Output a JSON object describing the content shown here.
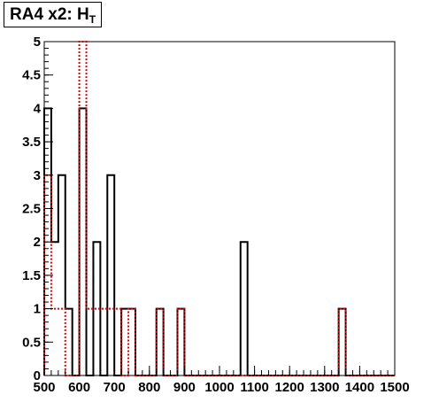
{
  "title": {
    "main": "RA4 x2: H",
    "subscript": "T"
  },
  "chart_data": {
    "type": "histogram",
    "title": "RA4 x2: HT",
    "xlabel": "",
    "ylabel": "",
    "xlim": [
      500,
      1500
    ],
    "ylim": [
      0,
      5
    ],
    "bin_width": 20,
    "x_ticks": [
      500,
      600,
      700,
      800,
      900,
      1000,
      1100,
      1200,
      1300,
      1400,
      1500
    ],
    "x_tick_labels": [
      "500",
      "600",
      "700",
      "800",
      "900",
      "1000",
      "1100",
      "1200",
      "1300",
      "1400",
      "1500"
    ],
    "y_ticks": [
      0,
      0.5,
      1,
      1.5,
      2,
      2.5,
      3,
      3.5,
      4,
      4.5,
      5
    ],
    "y_tick_labels": [
      "0",
      "0.5",
      "1",
      "1.5",
      "2",
      "2.5",
      "3",
      "3.5",
      "4",
      "4.5",
      "5"
    ],
    "series": [
      {
        "style": "solid",
        "color": "#000000",
        "bins": [
          {
            "x": 500,
            "y": 4
          },
          {
            "x": 520,
            "y": 2
          },
          {
            "x": 540,
            "y": 3
          },
          {
            "x": 560,
            "y": 1
          },
          {
            "x": 580,
            "y": 0
          },
          {
            "x": 600,
            "y": 4
          },
          {
            "x": 620,
            "y": 0
          },
          {
            "x": 640,
            "y": 2
          },
          {
            "x": 660,
            "y": 0
          },
          {
            "x": 680,
            "y": 3
          },
          {
            "x": 700,
            "y": 0
          },
          {
            "x": 720,
            "y": 1
          },
          {
            "x": 740,
            "y": 1
          },
          {
            "x": 760,
            "y": 0
          },
          {
            "x": 780,
            "y": 0
          },
          {
            "x": 800,
            "y": 0
          },
          {
            "x": 820,
            "y": 1
          },
          {
            "x": 840,
            "y": 0
          },
          {
            "x": 860,
            "y": 0
          },
          {
            "x": 880,
            "y": 1
          },
          {
            "x": 900,
            "y": 0
          },
          {
            "x": 920,
            "y": 0
          },
          {
            "x": 940,
            "y": 0
          },
          {
            "x": 960,
            "y": 0
          },
          {
            "x": 980,
            "y": 0
          },
          {
            "x": 1000,
            "y": 0
          },
          {
            "x": 1020,
            "y": 0
          },
          {
            "x": 1040,
            "y": 0
          },
          {
            "x": 1060,
            "y": 2
          },
          {
            "x": 1080,
            "y": 0
          },
          {
            "x": 1100,
            "y": 0
          },
          {
            "x": 1120,
            "y": 0
          },
          {
            "x": 1140,
            "y": 0
          },
          {
            "x": 1160,
            "y": 0
          },
          {
            "x": 1180,
            "y": 0
          },
          {
            "x": 1200,
            "y": 0
          },
          {
            "x": 1220,
            "y": 0
          },
          {
            "x": 1240,
            "y": 0
          },
          {
            "x": 1260,
            "y": 0
          },
          {
            "x": 1280,
            "y": 0
          },
          {
            "x": 1300,
            "y": 0
          },
          {
            "x": 1320,
            "y": 0
          },
          {
            "x": 1340,
            "y": 1
          },
          {
            "x": 1360,
            "y": 0
          },
          {
            "x": 1380,
            "y": 0
          },
          {
            "x": 1400,
            "y": 0
          },
          {
            "x": 1420,
            "y": 0
          },
          {
            "x": 1440,
            "y": 0
          },
          {
            "x": 1460,
            "y": 0
          },
          {
            "x": 1480,
            "y": 0
          }
        ]
      },
      {
        "style": "dotted",
        "color": "#dd0000",
        "bins": [
          {
            "x": 500,
            "y": 3
          },
          {
            "x": 520,
            "y": 1
          },
          {
            "x": 540,
            "y": 1
          },
          {
            "x": 560,
            "y": 0
          },
          {
            "x": 580,
            "y": 0
          },
          {
            "x": 600,
            "y": 5
          },
          {
            "x": 620,
            "y": 1
          },
          {
            "x": 640,
            "y": 1
          },
          {
            "x": 660,
            "y": 1
          },
          {
            "x": 680,
            "y": 1
          },
          {
            "x": 700,
            "y": 1
          },
          {
            "x": 720,
            "y": 0
          },
          {
            "x": 740,
            "y": 1
          },
          {
            "x": 760,
            "y": 0
          },
          {
            "x": 780,
            "y": 0
          },
          {
            "x": 800,
            "y": 0
          },
          {
            "x": 820,
            "y": 1
          },
          {
            "x": 840,
            "y": 0
          },
          {
            "x": 860,
            "y": 0
          },
          {
            "x": 880,
            "y": 1
          },
          {
            "x": 900,
            "y": 0
          },
          {
            "x": 920,
            "y": 0
          },
          {
            "x": 940,
            "y": 0
          },
          {
            "x": 960,
            "y": 0
          },
          {
            "x": 980,
            "y": 0
          },
          {
            "x": 1000,
            "y": 0
          },
          {
            "x": 1020,
            "y": 0
          },
          {
            "x": 1040,
            "y": 0
          },
          {
            "x": 1060,
            "y": 0
          },
          {
            "x": 1080,
            "y": 0
          },
          {
            "x": 1100,
            "y": 0
          },
          {
            "x": 1120,
            "y": 0
          },
          {
            "x": 1140,
            "y": 0
          },
          {
            "x": 1160,
            "y": 0
          },
          {
            "x": 1180,
            "y": 0
          },
          {
            "x": 1200,
            "y": 0
          },
          {
            "x": 1220,
            "y": 0
          },
          {
            "x": 1240,
            "y": 0
          },
          {
            "x": 1260,
            "y": 0
          },
          {
            "x": 1280,
            "y": 0
          },
          {
            "x": 1300,
            "y": 0
          },
          {
            "x": 1320,
            "y": 0
          },
          {
            "x": 1340,
            "y": 1
          },
          {
            "x": 1360,
            "y": 0
          },
          {
            "x": 1380,
            "y": 0
          },
          {
            "x": 1400,
            "y": 0
          },
          {
            "x": 1420,
            "y": 0
          },
          {
            "x": 1440,
            "y": 0
          },
          {
            "x": 1460,
            "y": 0
          },
          {
            "x": 1480,
            "y": 0
          }
        ]
      }
    ],
    "grid": false,
    "legend": "none"
  }
}
